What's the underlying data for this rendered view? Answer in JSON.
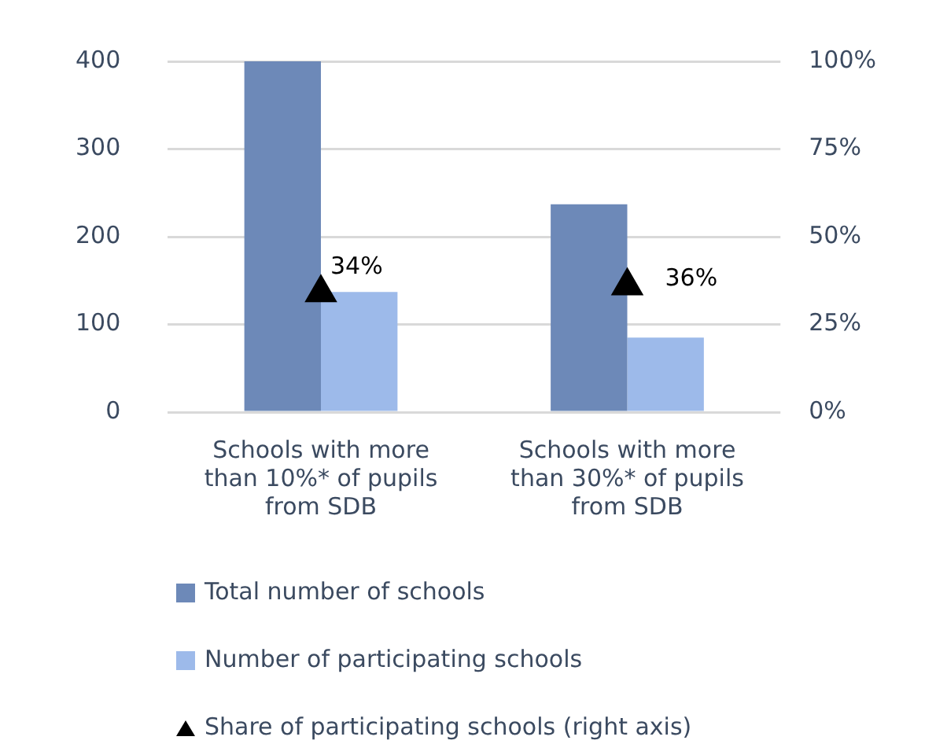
{
  "chart_data": {
    "type": "bar",
    "categories": [
      "Schools with more than 10%* of pupils from SDB",
      "Schools with more than 30%* of pupils from SDB"
    ],
    "series": [
      {
        "name": "Total number of schools",
        "color": "#6d89b8",
        "values": [
          400,
          237
        ]
      },
      {
        "name": "Number of participating schools",
        "color": "#9dbaea",
        "values": [
          137,
          85
        ]
      },
      {
        "name": "Share of participating schools (right axis)",
        "type": "scatter",
        "axis": "y2",
        "marker": "triangle",
        "color": "#000000",
        "x": [
          "Schools with more than 10%* of pupils from SDB",
          "Schools with more than 30%* of pupils from SDB"
        ],
        "values": [
          34,
          36
        ],
        "value_labels": [
          "34%",
          "36%"
        ]
      }
    ],
    "ylim": [
      0,
      400
    ],
    "yticks": [
      0,
      100,
      200,
      300,
      400
    ],
    "y2lim": [
      0,
      100
    ],
    "y2ticks": [
      {
        "value": 0,
        "label": "0%"
      },
      {
        "value": 25,
        "label": "25%"
      },
      {
        "value": 50,
        "label": "50%"
      },
      {
        "value": 75,
        "label": "75%"
      },
      {
        "value": 100,
        "label": "100%"
      }
    ],
    "grid": "y",
    "legend": "bottom"
  }
}
